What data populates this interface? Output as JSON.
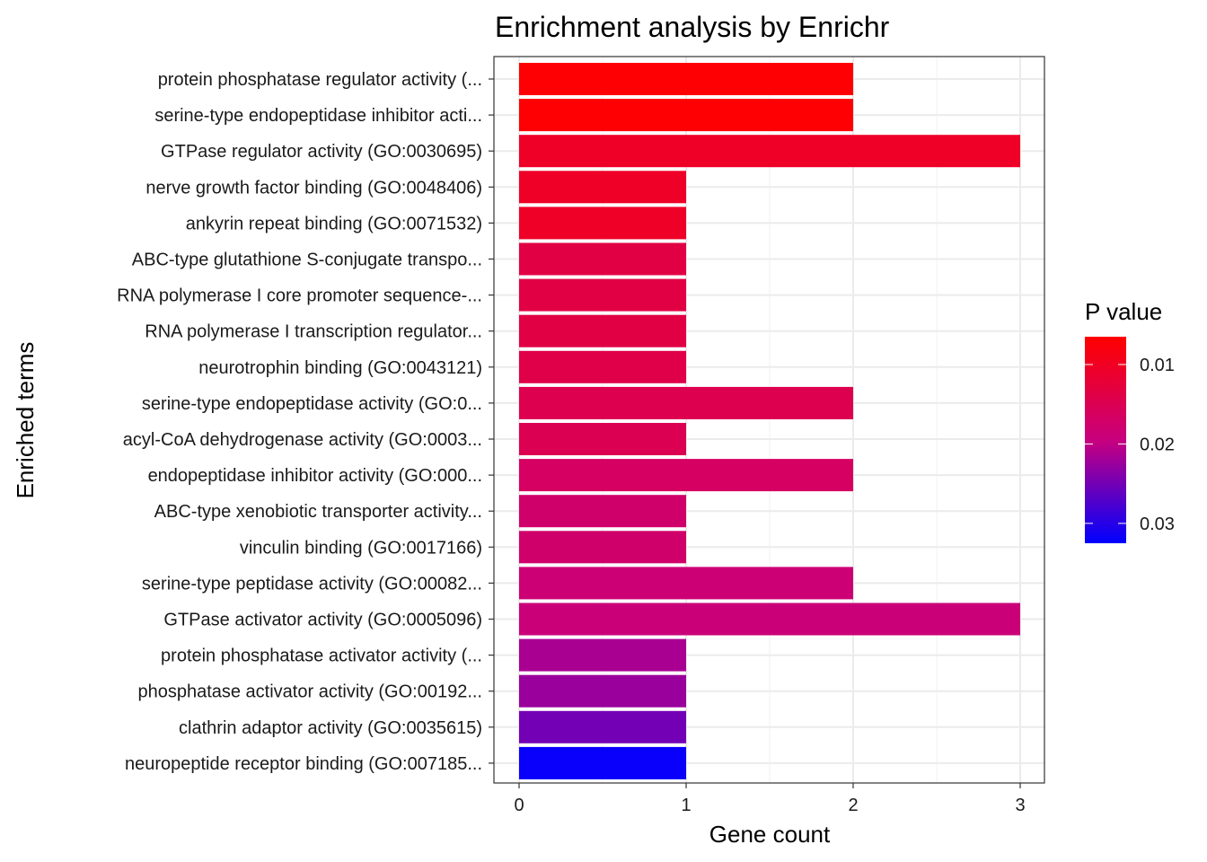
{
  "chart_data": {
    "type": "bar",
    "orientation": "horizontal",
    "title": "Enrichment analysis by Enrichr",
    "xlabel": "Gene count",
    "ylabel": "Enriched terms",
    "xlim": [
      0,
      3
    ],
    "xticks": [
      "0",
      "1",
      "2",
      "3"
    ],
    "grid": true,
    "categories": [
      "protein phosphatase regulator activity (...",
      "serine-type endopeptidase inhibitor acti...",
      "GTPase regulator activity (GO:0030695)",
      "nerve growth factor binding (GO:0048406)",
      "ankyrin repeat binding (GO:0071532)",
      "ABC-type glutathione S-conjugate transpo...",
      "RNA polymerase I core promoter sequence-...",
      "RNA polymerase I transcription regulator...",
      "neurotrophin binding (GO:0043121)",
      "serine-type endopeptidase activity (GO:0...",
      "acyl-CoA dehydrogenase activity (GO:0003...",
      "endopeptidase inhibitor activity (GO:000...",
      "ABC-type xenobiotic transporter activity...",
      "vinculin binding (GO:0017166)",
      "serine-type peptidase activity (GO:00082...",
      "GTPase activator activity (GO:0005096)",
      "protein phosphatase activator activity (...",
      "phosphatase activator activity (GO:00192...",
      "clathrin adaptor activity (GO:0035615)",
      "neuropeptide receptor binding (GO:007185..."
    ],
    "values": [
      2,
      2,
      3,
      1,
      1,
      1,
      1,
      1,
      1,
      2,
      1,
      2,
      1,
      1,
      2,
      3,
      1,
      1,
      1,
      1
    ],
    "p_values": [
      0.0068,
      0.0068,
      0.0105,
      0.0105,
      0.0105,
      0.0135,
      0.0135,
      0.0135,
      0.014,
      0.0145,
      0.015,
      0.0165,
      0.0175,
      0.0175,
      0.0185,
      0.019,
      0.0215,
      0.0225,
      0.025,
      0.032
    ],
    "legend": {
      "title": "P value",
      "position": "right",
      "range": [
        0.0065,
        0.0325
      ],
      "ticks": [
        0.01,
        0.02,
        0.03
      ],
      "tick_labels": [
        "0.01",
        "0.02",
        "0.03"
      ],
      "low_color": "#ff0000",
      "high_color": "#0000ff"
    }
  }
}
